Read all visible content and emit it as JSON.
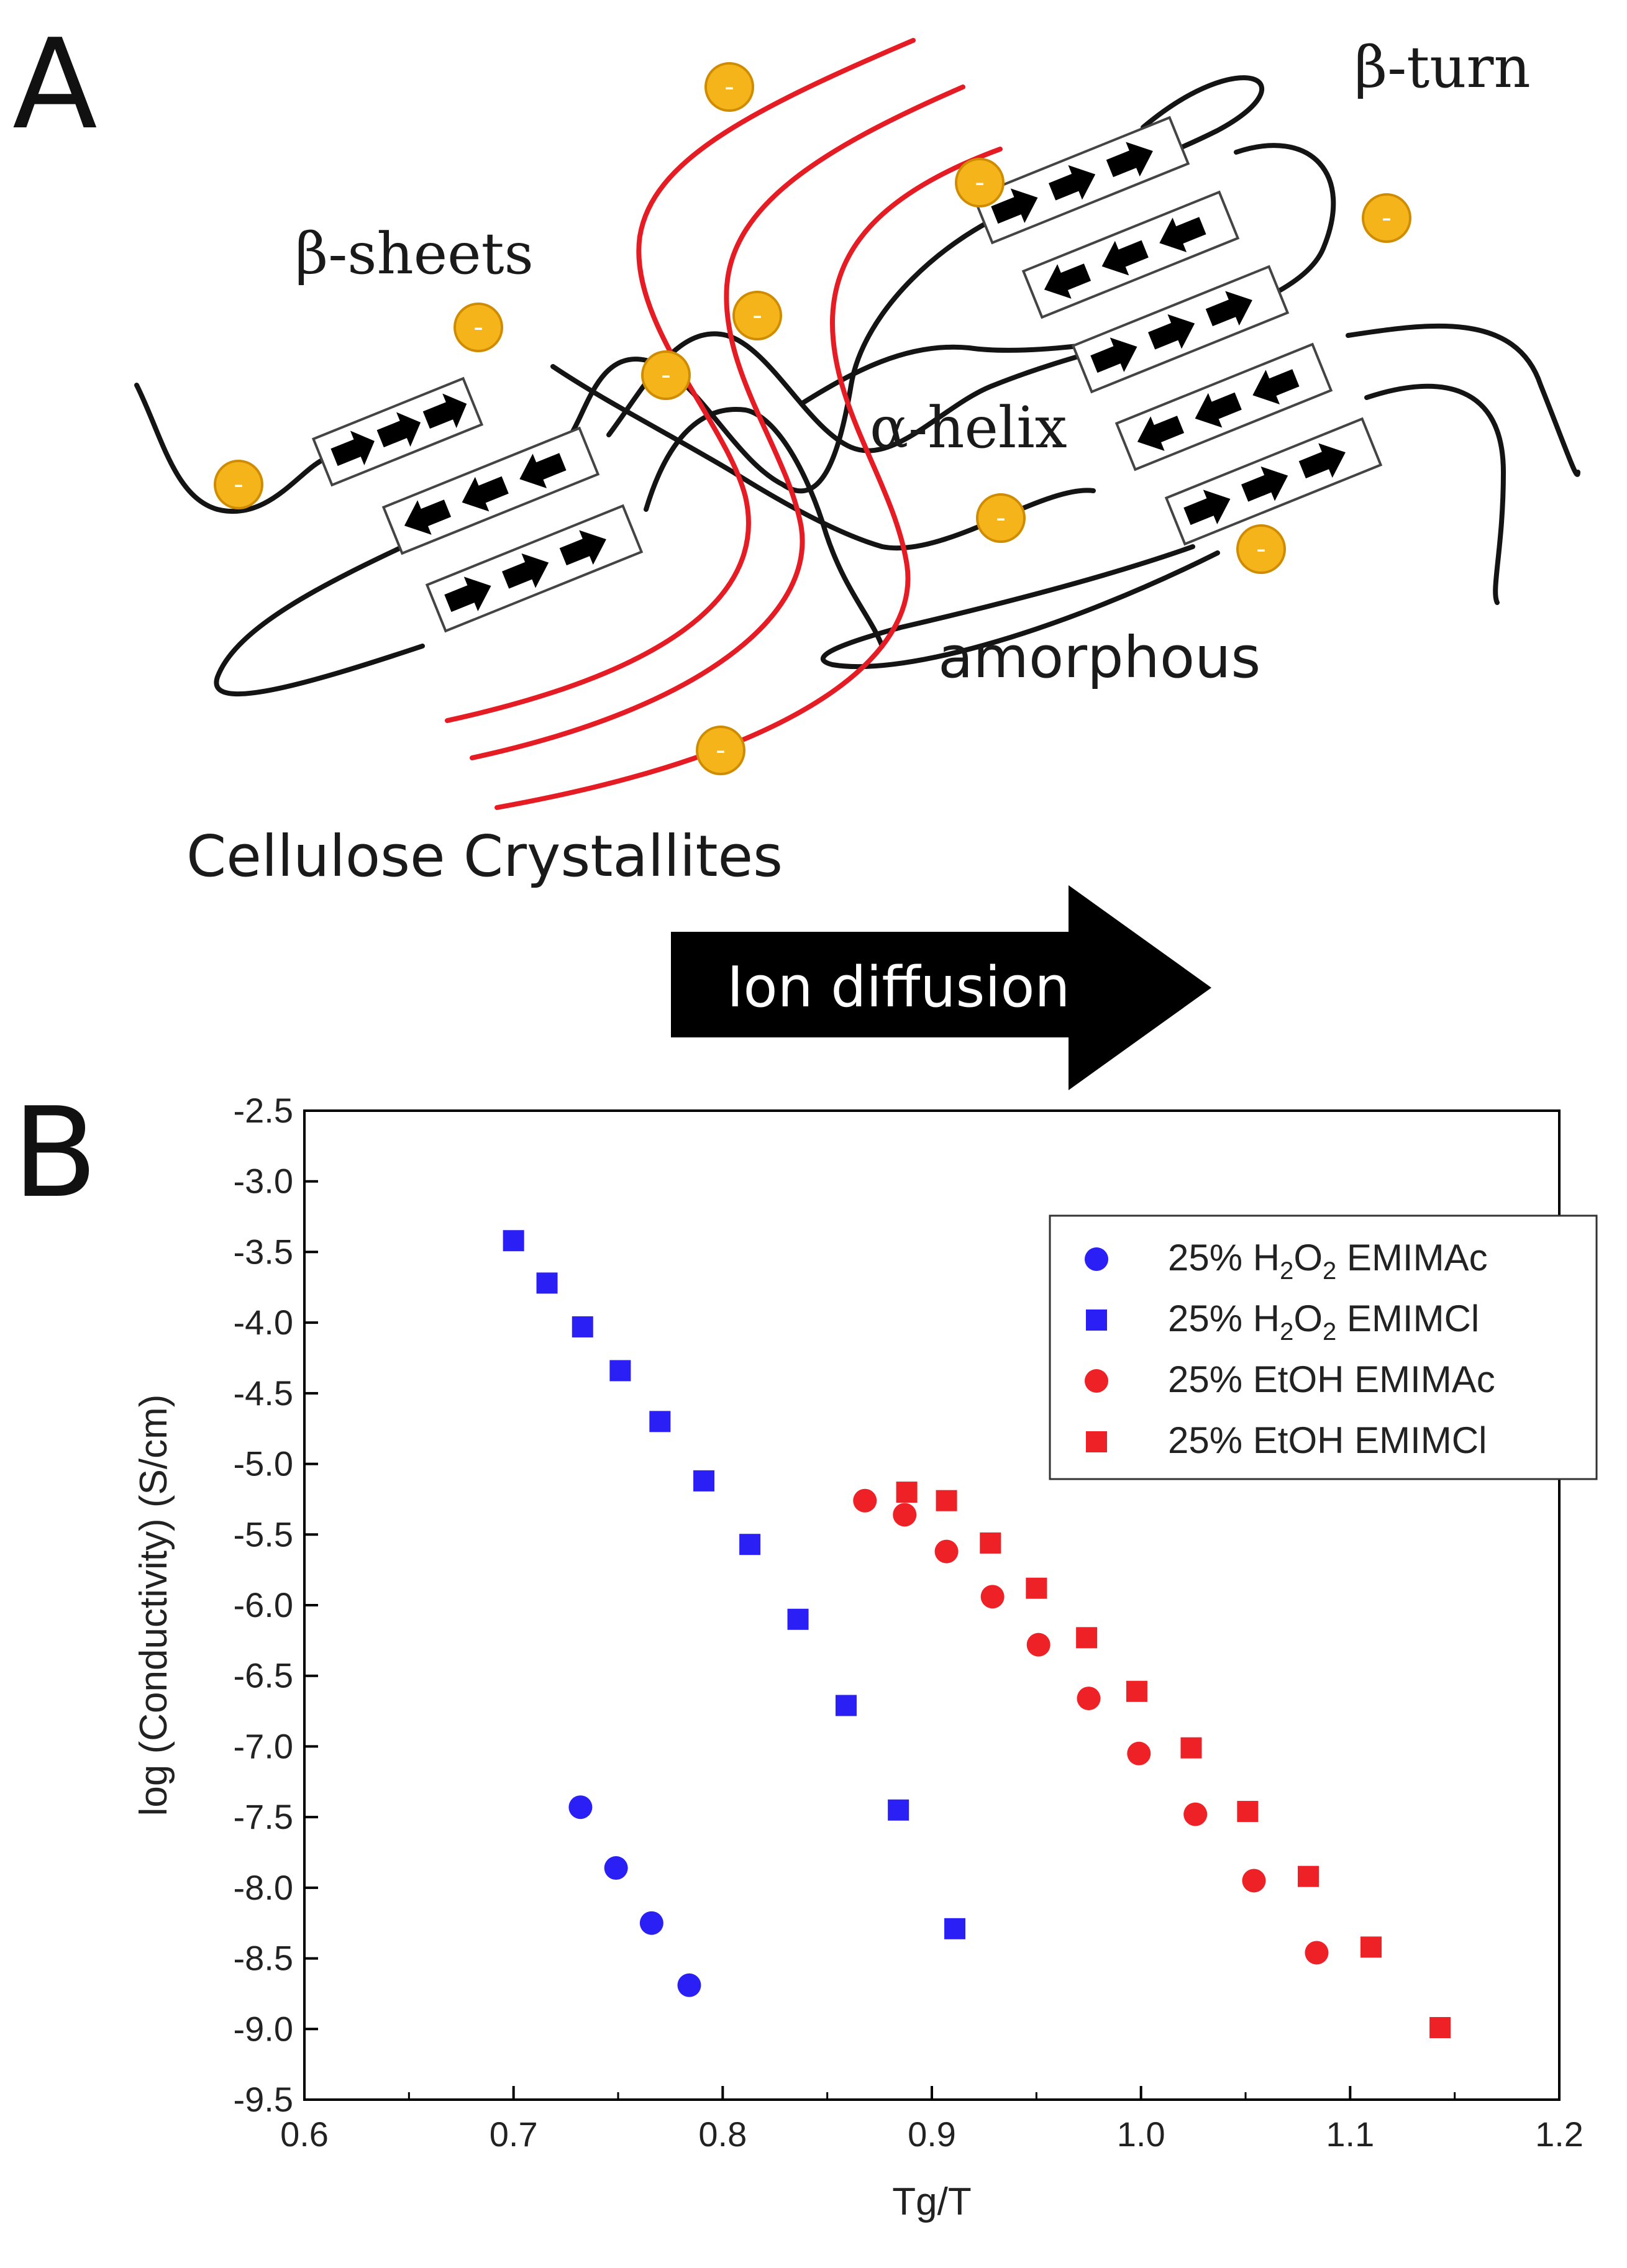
{
  "panel_a": {
    "letter": "A",
    "labels": {
      "beta_turn": "β-turn",
      "beta_sheets": "β-sheets",
      "alpha_helix": "α-helix",
      "amorphous": "amorphous",
      "cellulose": "Cellulose Crystallites"
    },
    "ion_charge": "-",
    "ion_diffusion": "Ion diffusion",
    "colors": {
      "ion": "#f5b51a",
      "cellulose": "#e51c24",
      "chain": "#141414"
    }
  },
  "panel_b": {
    "letter": "B"
  },
  "chart_data": {
    "type": "scatter",
    "xlabel": "Tg/T",
    "ylabel": "log (Conductivity) (S/cm)",
    "xlim": [
      0.6,
      1.2
    ],
    "ylim": [
      -9.5,
      -2.5
    ],
    "xticks": [
      "0.6",
      "0.7",
      "0.8",
      "0.9",
      "1.0",
      "1.1",
      "1.2"
    ],
    "yticks": [
      "-2.5",
      "-3.0",
      "-3.5",
      "-4.0",
      "-4.5",
      "-5.0",
      "-5.5",
      "-6.0",
      "-6.5",
      "-7.0",
      "-7.5",
      "-8.0",
      "-8.5",
      "-9.0",
      "-9.5"
    ],
    "legend_position": "top-right",
    "series": [
      {
        "name": "25% H2O2 EMIMAc",
        "legend_parts": [
          "25% H",
          "2",
          "O",
          "2",
          " EMIMAc"
        ],
        "marker": "circle",
        "color": "#2a1ff5",
        "x": [
          0.732,
          0.749,
          0.766,
          0.784
        ],
        "y": [
          -7.43,
          -7.86,
          -8.25,
          -8.69
        ]
      },
      {
        "name": "25% H2O2 EMIMCl",
        "legend_parts": [
          "25% H",
          "2",
          "O",
          "2",
          " EMIMCl"
        ],
        "marker": "square",
        "color": "#2a1ff5",
        "x": [
          0.7,
          0.716,
          0.733,
          0.751,
          0.77,
          0.791,
          0.813,
          0.836,
          0.859,
          0.884,
          0.911
        ],
        "y": [
          -3.42,
          -3.72,
          -4.03,
          -4.34,
          -4.7,
          -5.12,
          -5.57,
          -6.1,
          -6.71,
          -7.45,
          -8.29
        ]
      },
      {
        "name": "25% EtOH EMIMAc",
        "legend_parts": [
          "25% EtOH EMIMAc"
        ],
        "marker": "circle",
        "color": "#ee2226",
        "x": [
          0.868,
          0.887,
          0.907,
          0.929,
          0.951,
          0.975,
          0.999,
          1.026,
          1.054,
          1.084
        ],
        "y": [
          -5.26,
          -5.36,
          -5.62,
          -5.94,
          -6.28,
          -6.66,
          -7.05,
          -7.48,
          -7.95,
          -8.46
        ]
      },
      {
        "name": "25% EtOH EMIMCl",
        "legend_parts": [
          "25% EtOH EMIMCl"
        ],
        "marker": "square",
        "color": "#ee2226",
        "x": [
          0.888,
          0.907,
          0.928,
          0.95,
          0.974,
          0.998,
          1.024,
          1.051,
          1.08,
          1.11,
          1.143
        ],
        "y": [
          -5.2,
          -5.26,
          -5.56,
          -5.88,
          -6.23,
          -6.61,
          -7.01,
          -7.46,
          -7.92,
          -8.42,
          -8.99
        ]
      }
    ]
  }
}
